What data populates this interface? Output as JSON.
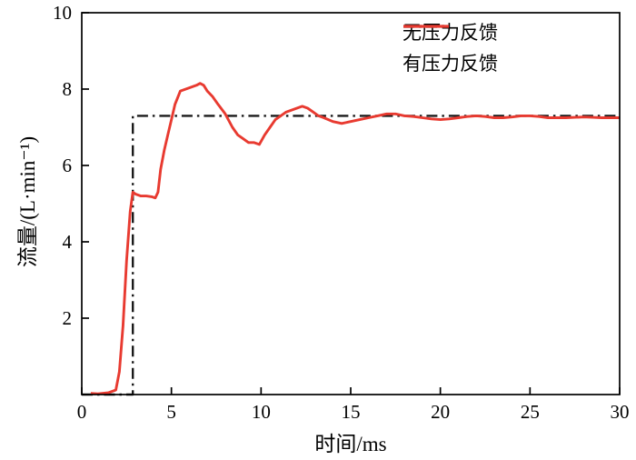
{
  "chart_data": {
    "type": "line",
    "title": "",
    "xlabel": "时间/ms",
    "ylabel": "流量/(L·min⁻¹)",
    "xlim": [
      0,
      30
    ],
    "ylim": [
      0,
      10
    ],
    "xticks": [
      0,
      5,
      10,
      15,
      20,
      25,
      30
    ],
    "yticks": [
      0,
      2,
      4,
      6,
      8,
      10
    ],
    "grid": false,
    "legend_position": "top-right",
    "frame_color": "#000000",
    "series": [
      {
        "name": "无压力反馈",
        "color": "#1a1a1a",
        "style": "dashdot",
        "points": [
          [
            0,
            0
          ],
          [
            2.85,
            0
          ],
          [
            2.85,
            7.3
          ],
          [
            30,
            7.3
          ]
        ]
      },
      {
        "name": "有压力反馈",
        "color": "#e83a30",
        "style": "solid",
        "points": [
          [
            0.5,
            0.03
          ],
          [
            0.9,
            0.02
          ],
          [
            1.5,
            0.05
          ],
          [
            1.9,
            0.12
          ],
          [
            2.1,
            0.6
          ],
          [
            2.3,
            1.8
          ],
          [
            2.5,
            3.5
          ],
          [
            2.7,
            4.8
          ],
          [
            2.85,
            5.3
          ],
          [
            3.0,
            5.25
          ],
          [
            3.3,
            5.2
          ],
          [
            3.6,
            5.2
          ],
          [
            3.9,
            5.18
          ],
          [
            4.1,
            5.15
          ],
          [
            4.25,
            5.3
          ],
          [
            4.4,
            5.9
          ],
          [
            4.6,
            6.4
          ],
          [
            4.8,
            6.8
          ],
          [
            5.0,
            7.2
          ],
          [
            5.2,
            7.6
          ],
          [
            5.5,
            7.95
          ],
          [
            5.8,
            8.0
          ],
          [
            6.1,
            8.05
          ],
          [
            6.4,
            8.1
          ],
          [
            6.6,
            8.15
          ],
          [
            6.8,
            8.1
          ],
          [
            7.0,
            7.95
          ],
          [
            7.3,
            7.8
          ],
          [
            7.6,
            7.6
          ],
          [
            8.0,
            7.35
          ],
          [
            8.4,
            7.0
          ],
          [
            8.7,
            6.8
          ],
          [
            9.0,
            6.7
          ],
          [
            9.3,
            6.6
          ],
          [
            9.6,
            6.6
          ],
          [
            9.9,
            6.55
          ],
          [
            10.2,
            6.8
          ],
          [
            10.5,
            7.0
          ],
          [
            10.8,
            7.2
          ],
          [
            11.1,
            7.3
          ],
          [
            11.4,
            7.4
          ],
          [
            11.7,
            7.45
          ],
          [
            12.0,
            7.5
          ],
          [
            12.3,
            7.55
          ],
          [
            12.6,
            7.5
          ],
          [
            12.9,
            7.4
          ],
          [
            13.2,
            7.3
          ],
          [
            13.5,
            7.25
          ],
          [
            14.0,
            7.15
          ],
          [
            14.5,
            7.1
          ],
          [
            15.0,
            7.15
          ],
          [
            15.5,
            7.2
          ],
          [
            16.0,
            7.25
          ],
          [
            16.5,
            7.3
          ],
          [
            17.0,
            7.35
          ],
          [
            17.5,
            7.35
          ],
          [
            18.0,
            7.3
          ],
          [
            18.5,
            7.28
          ],
          [
            19.0,
            7.25
          ],
          [
            19.5,
            7.22
          ],
          [
            20.0,
            7.2
          ],
          [
            20.5,
            7.22
          ],
          [
            21.0,
            7.25
          ],
          [
            21.5,
            7.28
          ],
          [
            22.0,
            7.3
          ],
          [
            22.5,
            7.28
          ],
          [
            23.0,
            7.25
          ],
          [
            23.5,
            7.25
          ],
          [
            24.0,
            7.27
          ],
          [
            24.5,
            7.3
          ],
          [
            25.0,
            7.3
          ],
          [
            25.5,
            7.28
          ],
          [
            26.0,
            7.25
          ],
          [
            26.5,
            7.25
          ],
          [
            27.0,
            7.25
          ],
          [
            27.5,
            7.26
          ],
          [
            28.0,
            7.27
          ],
          [
            28.5,
            7.26
          ],
          [
            29.0,
            7.25
          ],
          [
            29.5,
            7.25
          ],
          [
            30.0,
            7.25
          ]
        ]
      }
    ]
  }
}
